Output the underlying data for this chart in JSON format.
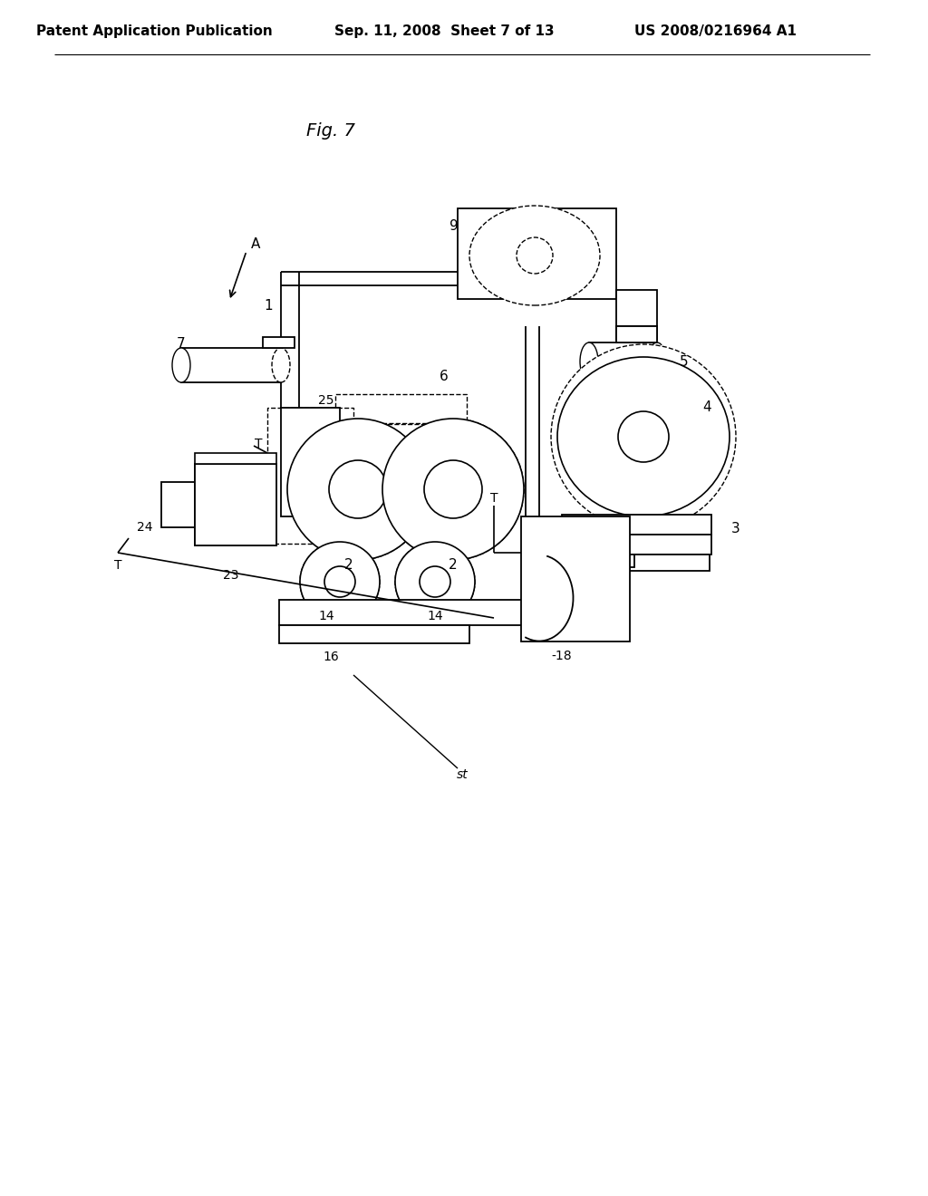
{
  "bg_color": "#ffffff",
  "line_color": "#000000",
  "header_left": "Patent Application Publication",
  "header_mid": "Sep. 11, 2008  Sheet 7 of 13",
  "header_right": "US 2008/0216964 A1",
  "fig_label": "Fig. 7"
}
